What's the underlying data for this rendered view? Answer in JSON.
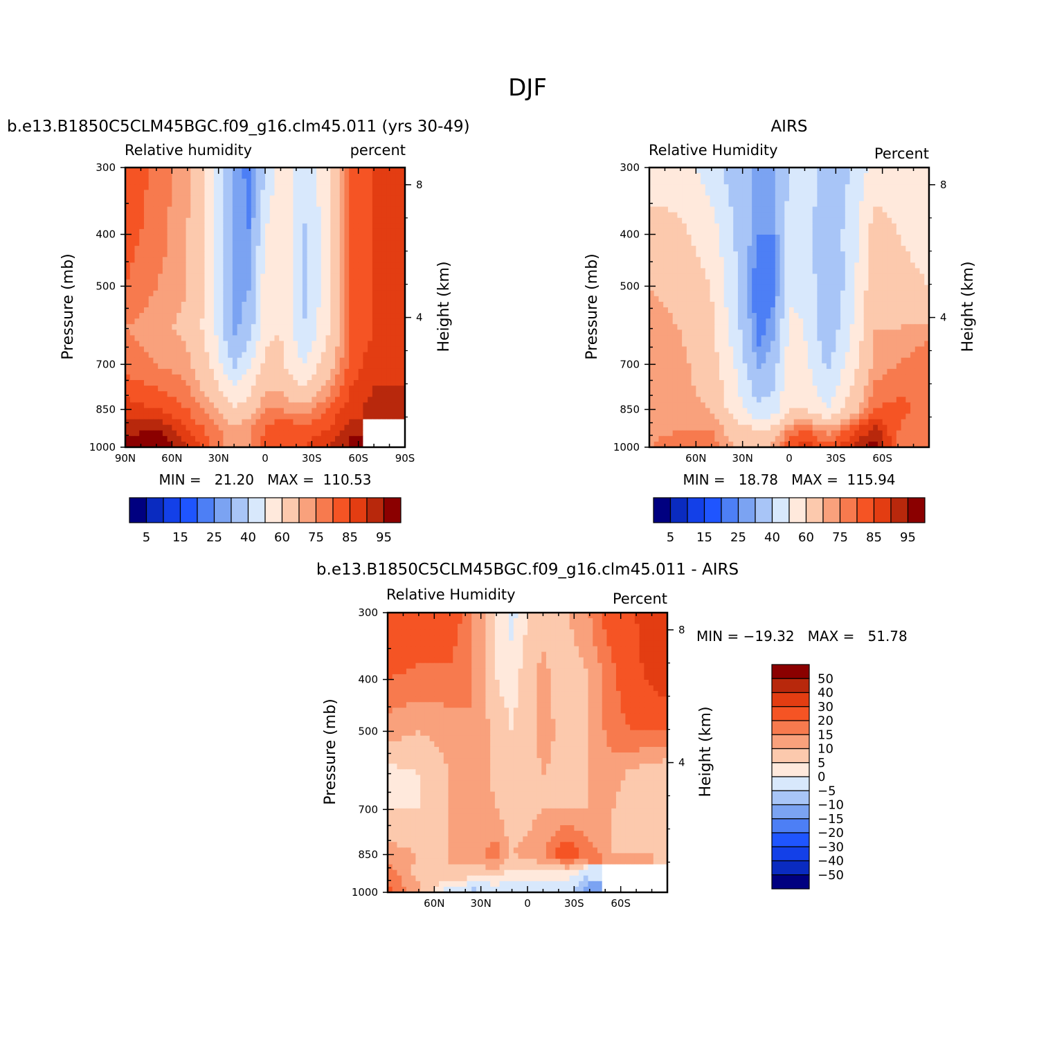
{
  "figure_title": "DJF",
  "palette": [
    "#000080",
    "#0a2bc0",
    "#1340e8",
    "#1f55ff",
    "#4d7ff5",
    "#7ba3f2",
    "#a8c5f7",
    "#d8e8fc",
    "#ffe9dc",
    "#fcc9ad",
    "#f9a17c",
    "#f77a4e",
    "#f55424",
    "#e33d12",
    "#b8280c",
    "#8b0000"
  ],
  "chart_data": [
    {
      "id": "model",
      "type": "heatmap",
      "title": "b.e13.B1850C5CLM45BGC.f09_g16.clm45.011 (yrs 30-49)",
      "variable_label": "Relative humidity",
      "units_label": "percent",
      "ylabel": "Pressure (mb)",
      "y2label": "Height (km)",
      "x_ticks": [
        "90N",
        "60N",
        "30N",
        "0",
        "30S",
        "60S",
        "90S"
      ],
      "y_ticks": [
        "300",
        "400",
        "500",
        "700",
        "850",
        "1000"
      ],
      "y2_ticks": [
        "8",
        "4"
      ],
      "stats_text": "MIN =   21.20   MAX =  110.53",
      "colorbar_labels": [
        "5",
        "15",
        "25",
        "40",
        "60",
        "75",
        "85",
        "95"
      ],
      "lat": [
        90,
        70,
        50,
        35,
        20,
        10,
        0,
        -10,
        -25,
        -40,
        -55,
        -70,
        -90
      ],
      "pressure": [
        300,
        400,
        500,
        600,
        700,
        850,
        925,
        1000
      ],
      "values": [
        [
          85,
          78,
          72,
          55,
          30,
          22,
          40,
          55,
          45,
          55,
          80,
          85,
          90
        ],
        [
          82,
          78,
          70,
          55,
          28,
          25,
          50,
          60,
          38,
          55,
          80,
          85,
          90
        ],
        [
          80,
          75,
          70,
          55,
          25,
          30,
          55,
          60,
          38,
          55,
          80,
          85,
          88
        ],
        [
          75,
          72,
          68,
          55,
          28,
          35,
          58,
          60,
          40,
          58,
          80,
          85,
          88
        ],
        [
          78,
          75,
          72,
          60,
          38,
          50,
          62,
          62,
          50,
          65,
          82,
          88,
          90
        ],
        [
          88,
          85,
          80,
          72,
          62,
          65,
          75,
          75,
          72,
          80,
          88,
          92,
          90
        ],
        [
          92,
          95,
          85,
          78,
          72,
          75,
          80,
          85,
          82,
          85,
          92,
          null,
          null
        ],
        [
          100,
          102,
          90,
          80,
          72,
          75,
          82,
          82,
          85,
          90,
          95,
          null,
          null
        ]
      ]
    },
    {
      "id": "obs",
      "type": "heatmap",
      "title": "AIRS",
      "variable_label": "Relative Humidity",
      "units_label": "Percent",
      "ylabel": "Pressure (mb)",
      "y2label": "Height (km)",
      "x_ticks": [
        "60N",
        "30N",
        "0",
        "30S",
        "60S"
      ],
      "y_ticks": [
        "300",
        "400",
        "500",
        "700",
        "850",
        "1000"
      ],
      "y2_ticks": [
        "8",
        "4"
      ],
      "stats_text": "MIN =   18.78   MAX =  115.94",
      "colorbar_labels": [
        "5",
        "15",
        "25",
        "40",
        "60",
        "75",
        "85",
        "95"
      ],
      "lat": [
        90,
        70,
        50,
        35,
        20,
        10,
        0,
        -10,
        -25,
        -40,
        -55,
        -70,
        -90
      ],
      "pressure": [
        300,
        400,
        500,
        600,
        700,
        850,
        925,
        1000
      ],
      "values": [
        [
          55,
          55,
          45,
          35,
          28,
          30,
          40,
          45,
          35,
          40,
          55,
          55,
          50
        ],
        [
          65,
          62,
          55,
          40,
          25,
          25,
          45,
          45,
          32,
          45,
          65,
          60,
          55
        ],
        [
          70,
          68,
          60,
          42,
          20,
          22,
          48,
          48,
          30,
          45,
          68,
          65,
          60
        ],
        [
          72,
          70,
          62,
          45,
          22,
          28,
          52,
          50,
          32,
          50,
          70,
          70,
          72
        ],
        [
          75,
          72,
          65,
          50,
          28,
          35,
          55,
          52,
          38,
          55,
          72,
          75,
          80
        ],
        [
          75,
          72,
          70,
          55,
          42,
          45,
          60,
          60,
          50,
          65,
          80,
          82,
          78
        ],
        [
          72,
          75,
          75,
          65,
          60,
          62,
          75,
          80,
          72,
          82,
          92,
          80,
          75
        ],
        [
          75,
          80,
          78,
          70,
          70,
          72,
          85,
          88,
          82,
          90,
          98,
          80,
          75
        ]
      ]
    },
    {
      "id": "diff",
      "type": "heatmap",
      "title": "b.e13.B1850C5CLM45BGC.f09_g16.clm45.011 - AIRS",
      "variable_label": "Relative Humidity",
      "units_label": "Percent",
      "ylabel": "Pressure (mb)",
      "y2label": "Height (km)",
      "x_ticks": [
        "60N",
        "30N",
        "0",
        "30S",
        "60S"
      ],
      "y_ticks": [
        "300",
        "400",
        "500",
        "700",
        "850",
        "1000"
      ],
      "y2_ticks": [
        "8",
        "4"
      ],
      "stats_text": "MIN = −19.32   MAX =   51.78",
      "colorbar_labels": [
        "50",
        "40",
        "30",
        "20",
        "15",
        "10",
        "5",
        "0",
        "−5",
        "−10",
        "−15",
        "−20",
        "−30",
        "−40",
        "−50"
      ],
      "lat": [
        90,
        70,
        50,
        35,
        20,
        10,
        0,
        -10,
        -25,
        -40,
        -55,
        -70,
        -90
      ],
      "pressure": [
        300,
        400,
        500,
        600,
        700,
        850,
        925,
        1000
      ],
      "values": [
        [
          30,
          25,
          25,
          15,
          5,
          -2,
          5,
          8,
          10,
          15,
          25,
          30,
          40
        ],
        [
          20,
          18,
          18,
          15,
          5,
          3,
          8,
          12,
          5,
          10,
          18,
          28,
          35
        ],
        [
          12,
          10,
          12,
          15,
          8,
          5,
          8,
          12,
          8,
          10,
          18,
          20,
          20
        ],
        [
          3,
          5,
          10,
          15,
          8,
          5,
          8,
          10,
          8,
          10,
          12,
          8,
          5
        ],
        [
          5,
          5,
          10,
          15,
          10,
          5,
          8,
          10,
          10,
          10,
          10,
          5,
          8
        ],
        [
          12,
          10,
          10,
          12,
          18,
          10,
          12,
          15,
          25,
          18,
          10,
          10,
          8
        ],
        [
          18,
          8,
          10,
          8,
          6,
          2,
          2,
          3,
          2,
          -5,
          null,
          null,
          null
        ],
        [
          22,
          12,
          -5,
          -8,
          -5,
          -5,
          -5,
          -3,
          -2,
          -15,
          null,
          null,
          null
        ]
      ]
    }
  ]
}
